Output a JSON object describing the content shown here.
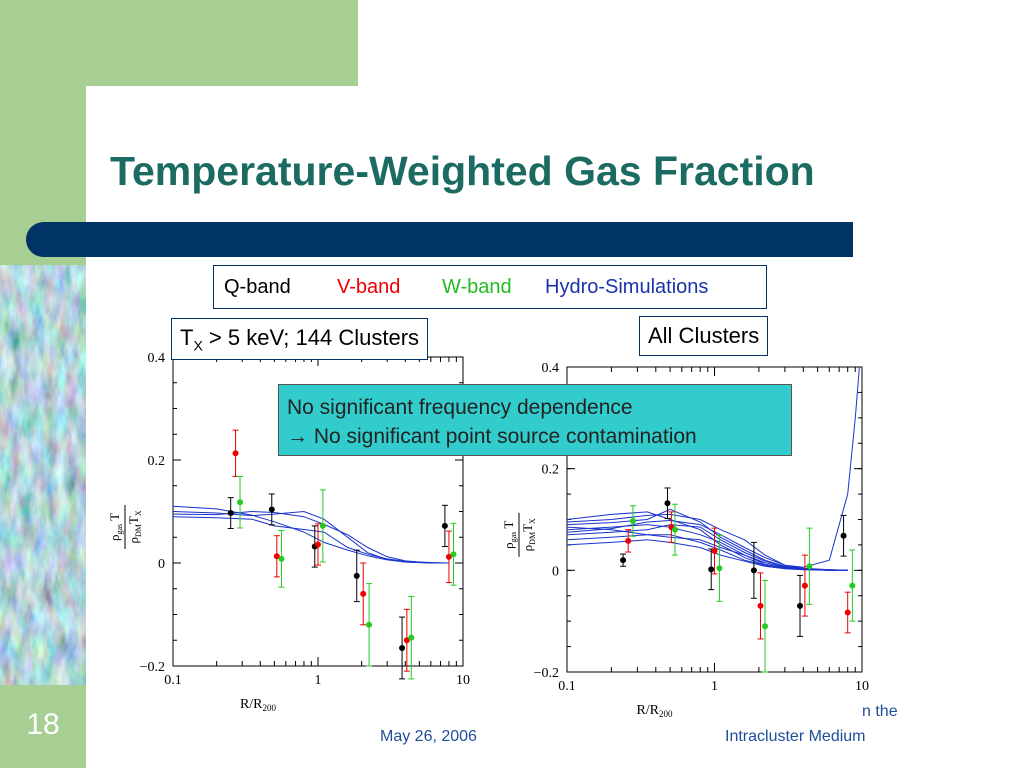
{
  "slide": {
    "number": "18",
    "title": "Temperature-Weighted Gas Fraction",
    "date": "May 26, 2006",
    "footer_line1": "n the",
    "footer_line2": "Intracluster Medium"
  },
  "legend": {
    "q": "Q-band",
    "v": "V-band",
    "w": "W-band",
    "hydro": "Hydro-Simulations"
  },
  "labels": {
    "left_prefix": "T",
    "left_sub": "X",
    "left_rest": " > 5 keV; 144 Clusters",
    "right": "All Clusters"
  },
  "callout": {
    "line1": "No significant frequency dependence",
    "line2": "→ No significant point source contamination"
  },
  "colors": {
    "green": "#a7cf93",
    "bar": "#003366",
    "title": "#1b6b62",
    "callout": "#33cccc",
    "q": "#000000",
    "v": "#ee0000",
    "w": "#22cc22",
    "hydro": "#1a33cc"
  },
  "chart_data": [
    {
      "type": "scatter",
      "title": "",
      "xlabel": "R/R200",
      "ylabel": "ρgas T / ρDM TX",
      "xscale": "log",
      "xlim": [
        0.1,
        10
      ],
      "ylim": [
        -0.2,
        0.4
      ],
      "xticks": [
        "0.1",
        "1",
        "10"
      ],
      "yticks": [
        "−0.2",
        "0",
        "0.2",
        "0.4"
      ],
      "series": [
        {
          "name": "Q-band",
          "points": [
            [
              0.25,
              0.097,
              0.03
            ],
            [
              0.48,
              0.104,
              0.03
            ],
            [
              0.95,
              0.032,
              0.04
            ],
            [
              1.85,
              -0.025,
              0.05
            ],
            [
              3.8,
              -0.165,
              0.06
            ],
            [
              7.5,
              0.072,
              0.04
            ]
          ]
        },
        {
          "name": "V-band",
          "points": [
            [
              0.27,
              0.213,
              0.045
            ],
            [
              0.52,
              0.013,
              0.04
            ],
            [
              1.0,
              0.036,
              0.04
            ],
            [
              2.05,
              -0.06,
              0.06
            ],
            [
              4.1,
              -0.15,
              0.06
            ],
            [
              8.0,
              0.012,
              0.05
            ]
          ]
        },
        {
          "name": "W-band",
          "points": [
            [
              0.29,
              0.118,
              0.05
            ],
            [
              0.56,
              0.008,
              0.055
            ],
            [
              1.08,
              0.072,
              0.07
            ],
            [
              2.25,
              -0.12,
              0.08
            ],
            [
              4.4,
              -0.145,
              0.08
            ],
            [
              8.6,
              0.017,
              0.06
            ]
          ]
        }
      ],
      "sim_curves": [
        [
          [
            0.1,
            0.095
          ],
          [
            0.2,
            0.094
          ],
          [
            0.35,
            0.1
          ],
          [
            0.5,
            0.098
          ],
          [
            0.8,
            0.09
          ],
          [
            1.1,
            0.075
          ],
          [
            1.6,
            0.055
          ],
          [
            2.2,
            0.03
          ],
          [
            3,
            0.012
          ],
          [
            4,
            0.004
          ],
          [
            6,
            0.0
          ],
          [
            8,
            0.0
          ]
        ],
        [
          [
            0.1,
            0.11
          ],
          [
            0.2,
            0.105
          ],
          [
            0.35,
            0.093
          ],
          [
            0.5,
            0.08
          ],
          [
            0.8,
            0.06
          ],
          [
            1.1,
            0.04
          ],
          [
            1.6,
            0.025
          ],
          [
            2.2,
            0.014
          ],
          [
            3,
            0.006
          ],
          [
            4,
            0.002
          ],
          [
            6,
            0.0
          ],
          [
            8,
            0.0
          ]
        ],
        [
          [
            0.1,
            0.09
          ],
          [
            0.2,
            0.088
          ],
          [
            0.35,
            0.085
          ],
          [
            0.5,
            0.072
          ],
          [
            0.8,
            0.065
          ],
          [
            1.1,
            0.06
          ],
          [
            1.6,
            0.03
          ],
          [
            2.2,
            0.017
          ],
          [
            3,
            0.008
          ],
          [
            4,
            0.003
          ],
          [
            6,
            0.001
          ],
          [
            8,
            0.0
          ]
        ],
        [
          [
            0.1,
            0.1
          ],
          [
            0.2,
            0.097
          ],
          [
            0.35,
            0.092
          ],
          [
            0.5,
            0.095
          ],
          [
            0.8,
            0.1
          ],
          [
            1.1,
            0.085
          ],
          [
            1.6,
            0.05
          ],
          [
            2.2,
            0.02
          ],
          [
            3,
            0.007
          ],
          [
            4,
            0.002
          ],
          [
            6,
            0.0
          ],
          [
            8,
            0.0
          ]
        ]
      ]
    },
    {
      "type": "scatter",
      "title": "",
      "xlabel": "R/R200",
      "ylabel": "ρgas T / ρDM TX",
      "xscale": "log",
      "xlim": [
        0.1,
        10
      ],
      "ylim": [
        -0.2,
        0.4
      ],
      "xticks": [
        "0.1",
        "1",
        "10"
      ],
      "yticks": [
        "−0.2",
        "0",
        "0.2",
        "0.4"
      ],
      "series": [
        {
          "name": "Q-band",
          "points": [
            [
              0.24,
              0.02,
              0.012
            ],
            [
              0.48,
              0.132,
              0.03
            ],
            [
              0.95,
              0.002,
              0.04
            ],
            [
              1.85,
              0.0,
              0.055
            ],
            [
              3.8,
              -0.07,
              0.06
            ],
            [
              7.5,
              0.068,
              0.04
            ]
          ]
        },
        {
          "name": "V-band",
          "points": [
            [
              0.26,
              0.058,
              0.022
            ],
            [
              0.51,
              0.085,
              0.03
            ],
            [
              1.0,
              0.038,
              0.045
            ],
            [
              2.05,
              -0.07,
              0.065
            ],
            [
              4.1,
              -0.03,
              0.06
            ],
            [
              8.0,
              -0.083,
              0.04
            ]
          ]
        },
        {
          "name": "W-band",
          "points": [
            [
              0.28,
              0.097,
              0.03
            ],
            [
              0.54,
              0.08,
              0.05
            ],
            [
              1.08,
              0.004,
              0.065
            ],
            [
              2.2,
              -0.11,
              0.09
            ],
            [
              4.4,
              0.008,
              0.075
            ],
            [
              8.6,
              -0.03,
              0.07
            ]
          ]
        }
      ],
      "sim_curves": [
        [
          [
            0.1,
            0.1
          ],
          [
            0.2,
            0.11
          ],
          [
            0.35,
            0.115
          ],
          [
            0.5,
            0.1
          ],
          [
            0.8,
            0.08
          ],
          [
            1.1,
            0.05
          ],
          [
            1.6,
            0.025
          ],
          [
            2.2,
            0.01
          ],
          [
            3,
            0.004
          ],
          [
            4,
            0.002
          ],
          [
            6,
            0.0
          ],
          [
            8,
            0.0
          ]
        ],
        [
          [
            0.1,
            0.09
          ],
          [
            0.2,
            0.094
          ],
          [
            0.35,
            0.1
          ],
          [
            0.5,
            0.12
          ],
          [
            0.8,
            0.095
          ],
          [
            1.1,
            0.065
          ],
          [
            1.6,
            0.04
          ],
          [
            2.2,
            0.02
          ],
          [
            3,
            0.008
          ],
          [
            4,
            0.003
          ],
          [
            6,
            0.001
          ],
          [
            8,
            0.0
          ]
        ],
        [
          [
            0.1,
            0.08
          ],
          [
            0.2,
            0.085
          ],
          [
            0.35,
            0.09
          ],
          [
            0.5,
            0.085
          ],
          [
            0.8,
            0.07
          ],
          [
            1.1,
            0.055
          ],
          [
            1.6,
            0.03
          ],
          [
            2.2,
            0.015
          ],
          [
            3,
            0.006
          ],
          [
            4,
            0.002
          ],
          [
            6,
            0.001
          ],
          [
            8,
            0.0
          ]
        ],
        [
          [
            0.1,
            0.07
          ],
          [
            0.2,
            0.075
          ],
          [
            0.35,
            0.08
          ],
          [
            0.5,
            0.09
          ],
          [
            0.8,
            0.085
          ],
          [
            1.1,
            0.06
          ],
          [
            1.6,
            0.035
          ],
          [
            2.2,
            0.018
          ],
          [
            3,
            0.007
          ],
          [
            4,
            0.003
          ],
          [
            6,
            0.0
          ],
          [
            8,
            0.0
          ]
        ],
        [
          [
            0.1,
            0.06
          ],
          [
            0.2,
            0.065
          ],
          [
            0.35,
            0.07
          ],
          [
            0.5,
            0.07
          ],
          [
            0.8,
            0.055
          ],
          [
            1.1,
            0.04
          ],
          [
            1.6,
            0.02
          ],
          [
            2.2,
            0.01
          ],
          [
            3,
            0.004
          ],
          [
            4,
            0.002
          ],
          [
            6,
            0.0
          ],
          [
            8,
            0.0
          ]
        ],
        [
          [
            0.1,
            0.095
          ],
          [
            0.2,
            0.1
          ],
          [
            0.35,
            0.108
          ],
          [
            0.5,
            0.11
          ],
          [
            0.8,
            0.1
          ],
          [
            1.1,
            0.08
          ],
          [
            1.6,
            0.06
          ],
          [
            2.2,
            0.03
          ],
          [
            3,
            0.01
          ],
          [
            4,
            0.004
          ],
          [
            6,
            0.001
          ],
          [
            8,
            0.0
          ]
        ],
        [
          [
            0.1,
            0.05
          ],
          [
            0.2,
            0.055
          ],
          [
            0.35,
            0.06
          ],
          [
            0.5,
            0.055
          ],
          [
            0.8,
            0.045
          ],
          [
            1.1,
            0.03
          ],
          [
            1.6,
            0.018
          ],
          [
            2.2,
            0.008
          ],
          [
            3,
            0.003
          ],
          [
            4,
            0.001
          ],
          [
            6,
            0.0
          ],
          [
            8,
            0.0
          ]
        ],
        [
          [
            0.1,
            0.085
          ],
          [
            0.2,
            0.08
          ],
          [
            0.35,
            0.07
          ],
          [
            0.5,
            0.065
          ],
          [
            0.8,
            0.06
          ],
          [
            1.1,
            0.045
          ],
          [
            1.6,
            0.03
          ],
          [
            2.2,
            0.012
          ],
          [
            3,
            0.005
          ],
          [
            4,
            0.002
          ],
          [
            6,
            0.0
          ],
          [
            8,
            0.0
          ]
        ],
        [
          [
            0.1,
            0.075
          ],
          [
            0.2,
            0.082
          ],
          [
            0.35,
            0.095
          ],
          [
            0.5,
            0.098
          ],
          [
            0.8,
            0.09
          ],
          [
            1.1,
            0.07
          ],
          [
            1.6,
            0.045
          ],
          [
            2.2,
            0.025
          ],
          [
            3,
            0.01
          ],
          [
            4,
            0.006
          ],
          [
            6,
            0.02
          ],
          [
            8,
            0.15
          ],
          [
            9,
            0.3
          ],
          [
            9.6,
            0.4
          ]
        ]
      ]
    }
  ]
}
